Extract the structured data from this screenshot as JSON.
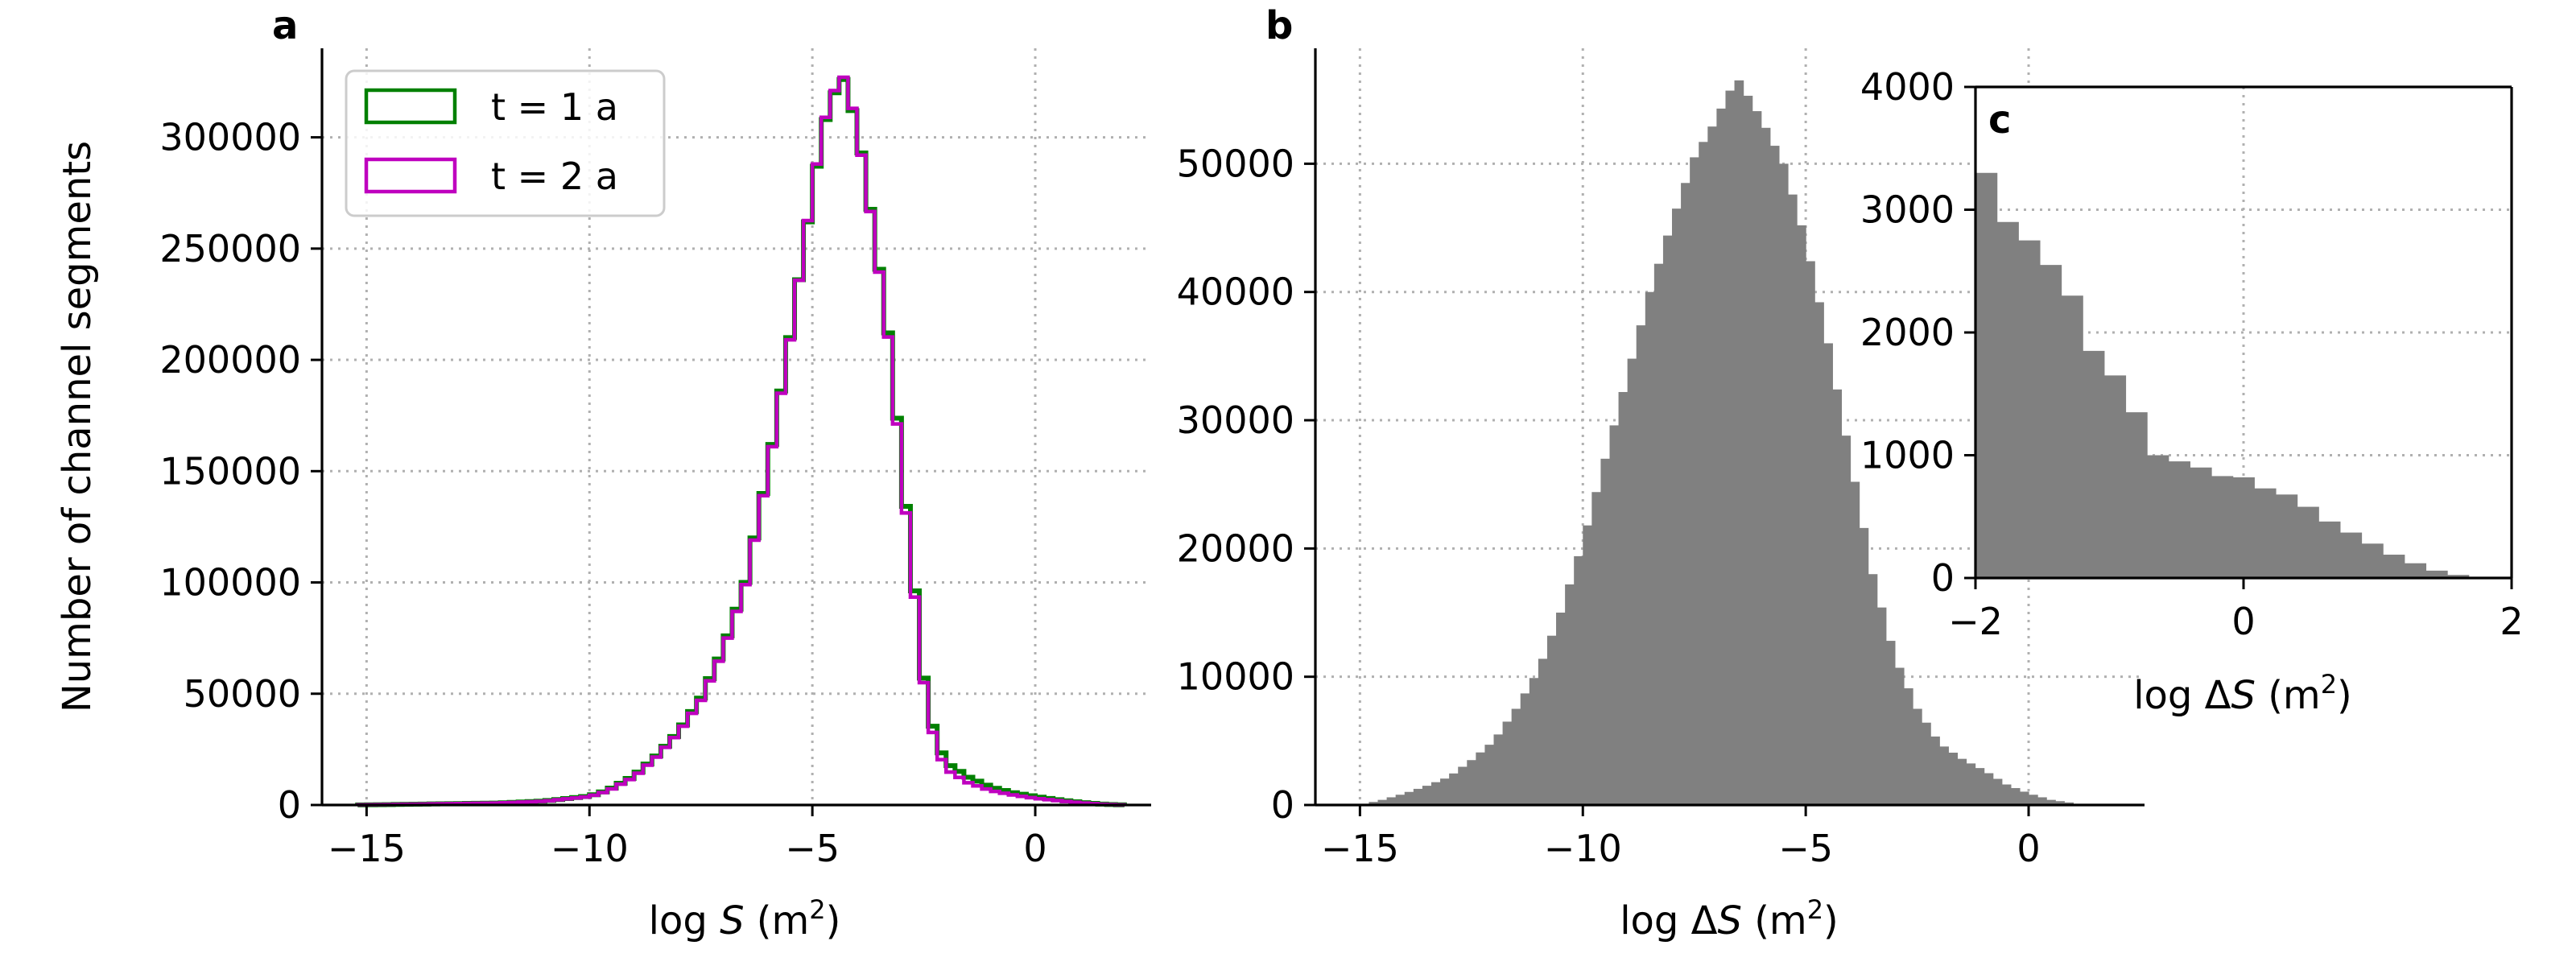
{
  "chart_data": [
    {
      "panel": "a",
      "type": "step-histogram",
      "xlabel_prefix": "log ",
      "xlabel_var": "S",
      "xlabel_unit": " (m",
      "xlabel_exp": "2",
      "xlabel_close": ")",
      "ylabel": "Number of channel segments",
      "xlim": [
        -16.0,
        2.6
      ],
      "ylim": [
        0,
        340000
      ],
      "xticks": [
        -15,
        -10,
        -5,
        0
      ],
      "xtick_labels": [
        "−15",
        "−10",
        "−5",
        "0"
      ],
      "yticks": [
        0,
        50000,
        100000,
        150000,
        200000,
        250000,
        300000
      ],
      "ytick_labels": [
        "0",
        "50000",
        "100000",
        "150000",
        "200000",
        "250000",
        "300000"
      ],
      "grid": true,
      "legend_position": "upper-left",
      "series": [
        {
          "name": "t = 1 a",
          "color": "#008000",
          "points": [
            [
              -15.2,
              0
            ],
            [
              -12,
              900
            ],
            [
              -11,
              1800
            ],
            [
              -10,
              4000
            ],
            [
              -9.6,
              6500
            ],
            [
              -9,
              13000
            ],
            [
              -8.5,
              22000
            ],
            [
              -8,
              33000
            ],
            [
              -7.5,
              48000
            ],
            [
              -7,
              70000
            ],
            [
              -6.5,
              100000
            ],
            [
              -6,
              150000
            ],
            [
              -5.5,
              210000
            ],
            [
              -5,
              275000
            ],
            [
              -4.75,
              305000
            ],
            [
              -4.5,
              320000
            ],
            [
              -4.3,
              326000
            ],
            [
              -4.1,
              312000
            ],
            [
              -3.9,
              293000
            ],
            [
              -3.6,
              255000
            ],
            [
              -3.25,
              205000
            ],
            [
              -3,
              153000
            ],
            [
              -2.75,
              106000
            ],
            [
              -2.5,
              57000
            ],
            [
              -2.25,
              30000
            ],
            [
              -2,
              19000
            ],
            [
              -1.5,
              12500
            ],
            [
              -1,
              8000
            ],
            [
              -0.5,
              5500
            ],
            [
              0,
              3800
            ],
            [
              0.5,
              2400
            ],
            [
              1,
              1200
            ],
            [
              1.5,
              400
            ],
            [
              2,
              0
            ]
          ]
        },
        {
          "name": "t = 2 a",
          "color": "#bf00bf",
          "points": [
            [
              -15.2,
              0
            ],
            [
              -12,
              900
            ],
            [
              -11,
              1700
            ],
            [
              -10,
              3800
            ],
            [
              -9.6,
              6200
            ],
            [
              -9,
              12500
            ],
            [
              -8.5,
              21500
            ],
            [
              -8,
              32500
            ],
            [
              -7.5,
              47000
            ],
            [
              -7,
              69000
            ],
            [
              -6.5,
              99000
            ],
            [
              -6,
              149000
            ],
            [
              -5.5,
              209000
            ],
            [
              -5,
              276000
            ],
            [
              -4.75,
              306000
            ],
            [
              -4.5,
              321000
            ],
            [
              -4.3,
              327000
            ],
            [
              -4.1,
              313000
            ],
            [
              -3.9,
              292000
            ],
            [
              -3.6,
              254000
            ],
            [
              -3.25,
              203000
            ],
            [
              -3,
              150000
            ],
            [
              -2.75,
              103000
            ],
            [
              -2.5,
              55000
            ],
            [
              -2.25,
              27000
            ],
            [
              -2,
              16000
            ],
            [
              -1.5,
              10000
            ],
            [
              -1,
              6500
            ],
            [
              -0.5,
              4500
            ],
            [
              0,
              3000
            ],
            [
              0.5,
              2000
            ],
            [
              1,
              1000
            ],
            [
              1.5,
              300
            ],
            [
              2,
              0
            ]
          ]
        }
      ]
    },
    {
      "panel": "b",
      "type": "histogram",
      "xlabel_prefix": "log Δ",
      "xlabel_var": "S",
      "xlabel_unit": " (m",
      "xlabel_exp": "2",
      "xlabel_close": ")",
      "ylabel": "",
      "xlim": [
        -16.0,
        2.6
      ],
      "ylim": [
        0,
        59000
      ],
      "xticks": [
        -15,
        -10,
        -5,
        0
      ],
      "xtick_labels": [
        "−15",
        "−10",
        "−5",
        "0"
      ],
      "yticks": [
        0,
        10000,
        20000,
        30000,
        40000,
        50000
      ],
      "ytick_labels": [
        "0",
        "10000",
        "20000",
        "30000",
        "40000",
        "50000"
      ],
      "grid": true,
      "color": "#808080",
      "peak_points": [
        [
          -15.0,
          0
        ],
        [
          -14.5,
          400
        ],
        [
          -14,
          900
        ],
        [
          -13.5,
          1500
        ],
        [
          -13,
          2200
        ],
        [
          -12.5,
          3500
        ],
        [
          -12,
          5000
        ],
        [
          -11.5,
          7500
        ],
        [
          -11,
          10500
        ],
        [
          -10.5,
          15000
        ],
        [
          -10,
          20500
        ],
        [
          -9.5,
          27000
        ],
        [
          -9,
          33500
        ],
        [
          -8.5,
          40000
        ],
        [
          -8,
          45500
        ],
        [
          -7.5,
          50500
        ],
        [
          -7,
          53500
        ],
        [
          -6.75,
          55500
        ],
        [
          -6.5,
          56500
        ],
        [
          -6.25,
          55000
        ],
        [
          -6,
          53500
        ],
        [
          -5.5,
          50000
        ],
        [
          -5,
          44000
        ],
        [
          -4.5,
          36000
        ],
        [
          -4,
          27000
        ],
        [
          -3.5,
          18000
        ],
        [
          -3,
          11500
        ],
        [
          -2.5,
          7500
        ],
        [
          -2,
          4800
        ],
        [
          -1.5,
          3600
        ],
        [
          -1,
          2700
        ],
        [
          -0.5,
          1600
        ],
        [
          0,
          900
        ],
        [
          0.5,
          400
        ],
        [
          1,
          150
        ],
        [
          1.2,
          0
        ]
      ]
    },
    {
      "panel": "c",
      "type": "histogram",
      "xlabel_prefix": "log Δ",
      "xlabel_var": "S",
      "xlabel_unit": " (m",
      "xlabel_exp": "2",
      "xlabel_close": ")",
      "xlim": [
        -2,
        2
      ],
      "ylim": [
        0,
        4000
      ],
      "xticks": [
        -2,
        0,
        2
      ],
      "xtick_labels": [
        "−2",
        "0",
        "2"
      ],
      "yticks": [
        0,
        1000,
        2000,
        3000,
        4000
      ],
      "ytick_labels": [
        "0",
        "1000",
        "2000",
        "3000",
        "4000"
      ],
      "grid": true,
      "color": "#808080",
      "bin_edges": [
        -2.0,
        -1.84,
        -1.68,
        -1.52,
        -1.36,
        -1.2,
        -1.04,
        -0.88,
        -0.72,
        -0.56,
        -0.4,
        -0.24,
        -0.08,
        0.08,
        0.24,
        0.4,
        0.56,
        0.72,
        0.88,
        1.04,
        1.2,
        1.36,
        1.52,
        1.68,
        1.84
      ],
      "values": [
        3300,
        2900,
        2750,
        2550,
        2300,
        1850,
        1650,
        1350,
        1000,
        950,
        900,
        830,
        820,
        730,
        680,
        580,
        460,
        370,
        280,
        190,
        120,
        60,
        25,
        8
      ]
    }
  ]
}
